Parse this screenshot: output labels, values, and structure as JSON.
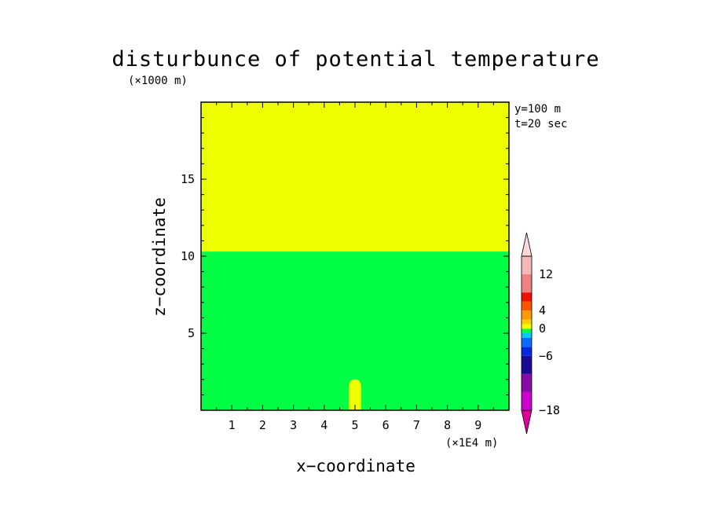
{
  "chart_data": {
    "type": "contour",
    "title": "disturbunce of potential temperature",
    "xlabel": "x−coordinate",
    "ylabel": "z−coordinate",
    "x_unit": "(×1E4 m)",
    "y_unit": "(×1000 m)",
    "annotations": [
      "y=100 m",
      "t=20 sec"
    ],
    "xlim": [
      0,
      10
    ],
    "ylim": [
      0,
      20
    ],
    "x_ticks": [
      1,
      2,
      3,
      4,
      5,
      6,
      7,
      8,
      9
    ],
    "y_ticks": [
      5,
      10,
      15
    ],
    "regions": [
      {
        "label": "upper layer",
        "x_range": [
          0,
          10
        ],
        "z_range": [
          10.3,
          20
        ],
        "color": "#eeff00"
      },
      {
        "label": "lower layer",
        "x_range": [
          0,
          10
        ],
        "z_range": [
          0,
          10.3
        ],
        "color": "#00ff44"
      },
      {
        "label": "bubble",
        "x_center": 5.0,
        "half_width": 0.2,
        "z_top": 2.0,
        "color": "#eeff00"
      }
    ],
    "colorbar": {
      "tick_labels": [
        "12",
        "4",
        "0",
        "−6",
        "−18"
      ],
      "tick_values": [
        12,
        4,
        0,
        -6,
        -18
      ],
      "levels": [
        {
          "lo": -20,
          "hi": -18,
          "color": "#e0009a"
        },
        {
          "lo": -18,
          "hi": -14,
          "color": "#cc00cc"
        },
        {
          "lo": -14,
          "hi": -10,
          "color": "#8a0aa8"
        },
        {
          "lo": -10,
          "hi": -6,
          "color": "#1a0a96"
        },
        {
          "lo": -6,
          "hi": -4,
          "color": "#0028e0"
        },
        {
          "lo": -4,
          "hi": -2,
          "color": "#0a6aff"
        },
        {
          "lo": -2,
          "hi": -1,
          "color": "#00c8ff"
        },
        {
          "lo": -1,
          "hi": 0,
          "color": "#00ff44"
        },
        {
          "lo": 0,
          "hi": 1,
          "color": "#eeff00"
        },
        {
          "lo": 1,
          "hi": 2,
          "color": "#ffd000"
        },
        {
          "lo": 2,
          "hi": 4,
          "color": "#ff9900"
        },
        {
          "lo": 4,
          "hi": 6,
          "color": "#ff5500"
        },
        {
          "lo": 6,
          "hi": 8,
          "color": "#ee1100"
        },
        {
          "lo": 8,
          "hi": 12,
          "color": "#f08080"
        },
        {
          "lo": 12,
          "hi": 16,
          "color": "#f5b8b8"
        },
        {
          "lo": 16,
          "hi": 20,
          "color": "#ffd8dc"
        }
      ]
    }
  }
}
